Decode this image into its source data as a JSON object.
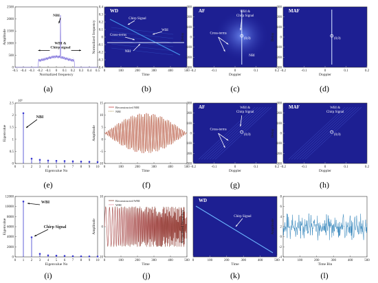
{
  "figure": {
    "panel_labels": [
      "(a)",
      "(b)",
      "(c)",
      "(d)",
      "(e)",
      "(f)",
      "(g)",
      "(h)",
      "(i)",
      "(j)",
      "(k)",
      "(l)"
    ]
  },
  "chart_data": [
    {
      "id": "a",
      "type": "line",
      "xlabel": "Normalized frequency",
      "ylabel": "Amplitude",
      "x_ticks": [
        "-0.5",
        "-0.4",
        "-0.3",
        "-0.2",
        "-0.1",
        "0",
        "0.1",
        "0.2",
        "0.3",
        "0.4",
        "0.5"
      ],
      "y_ticks": [
        "0",
        "500",
        "1000",
        "1500",
        "2000",
        "2500"
      ],
      "xlim": [
        -0.5,
        0.5
      ],
      "ylim": [
        0,
        2500
      ],
      "series": [
        {
          "values_desc": "narrowband NBI spike at 0.05 with wideband chirp floor",
          "x": [
            -0.5,
            -0.25,
            -0.2,
            -0.15,
            -0.1,
            -0.05,
            0,
            0.03,
            0.05,
            0.07,
            0.1,
            0.15,
            0.2,
            0.25,
            0.5
          ],
          "y": [
            0,
            0,
            300,
            420,
            420,
            430,
            440,
            450,
            2150,
            450,
            430,
            420,
            400,
            0,
            0
          ]
        }
      ],
      "annotations": [
        "NBI",
        "WBI &\nChirp signal"
      ]
    },
    {
      "id": "b",
      "type": "heatmap",
      "title": "WD",
      "xlabel": "Time",
      "ylabel": "Normalized frequency",
      "x_ticks": [
        "0",
        "100",
        "200",
        "300",
        "400",
        "500"
      ],
      "y_ticks": [
        "-0.4",
        "-0.3",
        "-0.2",
        "-0.1",
        "0",
        "0.1",
        "0.2",
        "0.3",
        "0.4"
      ],
      "annotations": [
        "Chirp Signal",
        "WBI",
        "Cross-terms",
        "NBI"
      ]
    },
    {
      "id": "c",
      "type": "heatmap",
      "title": "AF",
      "xlabel": "Doppler",
      "ylabel": "Delay",
      "x_ticks": [
        "-0.2",
        "-0.1",
        "0",
        "0.1",
        "0.2"
      ],
      "y_ticks": [
        "-300",
        "-200",
        "-100",
        "0",
        "100",
        "200",
        "300"
      ],
      "annotations": [
        "WBI &\nChirp Signal",
        "Cross-terms",
        "(0,0)",
        "NBI"
      ]
    },
    {
      "id": "d",
      "type": "heatmap",
      "title": "MAF",
      "xlabel": "Doppler",
      "ylabel": "Delay",
      "x_ticks": [
        "-0.2",
        "-0.1",
        "0",
        "0.1",
        "0.2"
      ],
      "y_ticks": [
        "-300",
        "-200",
        "-100",
        "0",
        "100",
        "200",
        "300"
      ],
      "annotations": [
        "(0,0)"
      ]
    },
    {
      "id": "e",
      "type": "scatter",
      "xlabel": "Eigenvalue No",
      "ylabel": "Eigenvalue",
      "y_exponent": "10⁵",
      "x_ticks": [
        "0",
        "1",
        "2",
        "3",
        "4",
        "5",
        "6",
        "7",
        "8",
        "9",
        "10"
      ],
      "y_ticks": [
        "0",
        "0.5",
        "1",
        "1.5",
        "2",
        "2.5"
      ],
      "xlim": [
        0,
        10
      ],
      "ylim": [
        0,
        2.5
      ],
      "series": [
        {
          "x": [
            1,
            2,
            3,
            4,
            5,
            6,
            7,
            8,
            9,
            10
          ],
          "y": [
            2.08,
            0.2,
            0.15,
            0.12,
            0.11,
            0.1,
            0.09,
            0.08,
            0.07,
            0.06
          ]
        }
      ],
      "annotations": [
        "NBI"
      ]
    },
    {
      "id": "f",
      "type": "line",
      "xlabel": "Time ",
      "ylabel": "Amplitude",
      "x_ticks": [
        "0",
        "100",
        "200",
        "300",
        "400",
        "500"
      ],
      "y_ticks": [
        "-10",
        "-5",
        "0",
        "5",
        "10",
        "15"
      ],
      "xlim": [
        0,
        500
      ],
      "ylim": [
        -15,
        15
      ],
      "series": [
        {
          "name": "Reconstructed NBI"
        },
        {
          "name": "NBI"
        }
      ]
    },
    {
      "id": "g",
      "type": "heatmap",
      "title": "AF",
      "xlabel": "Doppler",
      "ylabel": "Delay",
      "x_ticks": [
        "-0.2",
        "-0.1",
        "0",
        "0.1",
        "0.2"
      ],
      "y_ticks": [
        "-300",
        "-200",
        "-100",
        "0",
        "100",
        "200",
        "300"
      ],
      "annotations": [
        "WBI &\nChirp Signal",
        "Cross-terms",
        "(0,0)"
      ]
    },
    {
      "id": "h",
      "type": "heatmap",
      "title": "MAF",
      "xlabel": "Doppler",
      "ylabel": "Delay",
      "x_ticks": [
        "-0.2",
        "-0.1",
        "0",
        "0.1",
        "0.2"
      ],
      "y_ticks": [
        "-300",
        "-200",
        "-100",
        "0",
        "100",
        "200",
        "300"
      ],
      "annotations": [
        "WBI &\nChirp Signal",
        "(0,0)"
      ]
    },
    {
      "id": "i",
      "type": "scatter",
      "xlabel": "Eigenvalue No",
      "ylabel": "Eigenvalue",
      "x_ticks": [
        "0",
        "1",
        "2",
        "3",
        "4",
        "5",
        "6",
        "7",
        "8",
        "9",
        "10"
      ],
      "y_ticks": [
        "0",
        "2000",
        "4000",
        "6000",
        "8000",
        "10000",
        "12000"
      ],
      "xlim": [
        0,
        10
      ],
      "ylim": [
        0,
        12000
      ],
      "series": [
        {
          "x": [
            1,
            2,
            3,
            4,
            5,
            6,
            7,
            8,
            9,
            10
          ],
          "y": [
            11000,
            3900,
            600,
            300,
            250,
            200,
            150,
            120,
            100,
            80
          ]
        }
      ],
      "annotations": [
        "WBI",
        "Chirp Signal"
      ]
    },
    {
      "id": "j",
      "type": "line",
      "xlabel": "Time",
      "ylabel": "Amplitude",
      "x_ticks": [
        "0",
        "100",
        "200",
        "300",
        "400",
        "500"
      ],
      "y_ticks": [
        "-10",
        "0",
        "10"
      ],
      "xlim": [
        0,
        500
      ],
      "ylim": [
        -15,
        15
      ],
      "series": [
        {
          "name": "Reconstructed WBI"
        },
        {
          "name": "WBI"
        }
      ]
    },
    {
      "id": "k",
      "type": "heatmap",
      "title": "WD",
      "xlabel": "Time",
      "ylabel": "Normalized frequency",
      "x_ticks": [
        "0",
        "100",
        "200",
        "300",
        "400",
        "500"
      ],
      "y_ticks": [],
      "annotations": [
        "Chirp Signal"
      ]
    },
    {
      "id": "l",
      "type": "line",
      "xlabel": "Time Bin",
      "ylabel": "Amplitude",
      "x_ticks": [
        "0",
        "100",
        "200",
        "300",
        "400",
        "500"
      ],
      "y_ticks": [
        "-4",
        "-2",
        "0",
        "2",
        "4",
        "6",
        "8"
      ],
      "xlim": [
        0,
        500
      ],
      "ylim": [
        -5,
        8
      ]
    }
  ]
}
